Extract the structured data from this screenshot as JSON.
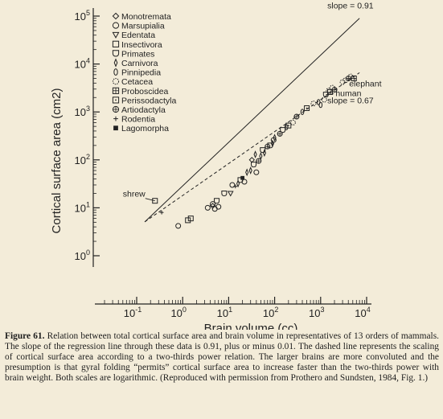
{
  "chart_data": {
    "type": "scatter",
    "xlabel": "Brain volume (cc)",
    "ylabel": "Cortical surface area (cm2)",
    "xscale": "log",
    "yscale": "log",
    "xlim": [
      0.1,
      10000
    ],
    "ylim": [
      1,
      100000
    ],
    "x_ticks": [
      "10-1",
      "100",
      "101",
      "102",
      "103",
      "104"
    ],
    "y_ticks": [
      "100",
      "101",
      "102",
      "103",
      "104",
      "105"
    ],
    "legend_position": "top-left",
    "legend": [
      {
        "label": "Monotremata",
        "symbol": "diamond"
      },
      {
        "label": "Marsupialia",
        "symbol": "circle"
      },
      {
        "label": "Edentata",
        "symbol": "triangle-down"
      },
      {
        "label": "Insectivora",
        "symbol": "square"
      },
      {
        "label": "Primates",
        "symbol": "shield"
      },
      {
        "label": "Carnivora",
        "symbol": "thin-diamond"
      },
      {
        "label": "Pinnipedia",
        "symbol": "ellipse"
      },
      {
        "label": "Cetacea",
        "symbol": "dotted-circle"
      },
      {
        "label": "Proboscidea",
        "symbol": "crossed-square"
      },
      {
        "label": "Perissodactyla",
        "symbol": "square-dot"
      },
      {
        "label": "Artiodactyla",
        "symbol": "circle-plus"
      },
      {
        "label": "Rodentia",
        "symbol": "plus"
      },
      {
        "label": "Lagomorpha",
        "symbol": "filled-square"
      }
    ],
    "lines": [
      {
        "label": "slope = 0.91",
        "style": "solid",
        "points": [
          [
            0.15,
            5.1
          ],
          [
            7000,
            90000
          ]
        ]
      },
      {
        "label": "slope = 0.67",
        "style": "dashed",
        "points": [
          [
            0.15,
            5.1
          ],
          [
            7000,
            6600
          ]
        ]
      }
    ],
    "annotations": [
      {
        "text": "shrew",
        "x": 0.25,
        "y": 14
      },
      {
        "text": "human",
        "x": 1300,
        "y": 2300
      },
      {
        "text": "elephant",
        "x": 5300,
        "y": 5000
      }
    ],
    "points": [
      {
        "x": 0.25,
        "y": 14,
        "group": "Insectivora"
      },
      {
        "x": 0.35,
        "y": 8,
        "group": "Rodentia"
      },
      {
        "x": 0.8,
        "y": 4.2,
        "group": "Marsupialia"
      },
      {
        "x": 1.3,
        "y": 5.5,
        "group": "Insectivora"
      },
      {
        "x": 1.5,
        "y": 6,
        "group": "Insectivora"
      },
      {
        "x": 3.5,
        "y": 10,
        "group": "Marsupialia"
      },
      {
        "x": 4.5,
        "y": 11,
        "group": "Monotremata"
      },
      {
        "x": 4.5,
        "y": 12,
        "group": "Marsupialia"
      },
      {
        "x": 5,
        "y": 9.5,
        "group": "Marsupialia"
      },
      {
        "x": 5.5,
        "y": 14,
        "group": "Primates"
      },
      {
        "x": 6,
        "y": 10.5,
        "group": "Marsupialia"
      },
      {
        "x": 8,
        "y": 20,
        "group": "Primates"
      },
      {
        "x": 11,
        "y": 20,
        "group": "Edentata"
      },
      {
        "x": 12,
        "y": 30,
        "group": "Marsupialia"
      },
      {
        "x": 14,
        "y": 28,
        "group": "Rodentia"
      },
      {
        "x": 16,
        "y": 32,
        "group": "Carnivora"
      },
      {
        "x": 18,
        "y": 38,
        "group": "Primates"
      },
      {
        "x": 20,
        "y": 42,
        "group": "Lagomorpha"
      },
      {
        "x": 22,
        "y": 35,
        "group": "Marsupialia"
      },
      {
        "x": 25,
        "y": 55,
        "group": "Carnivora"
      },
      {
        "x": 30,
        "y": 60,
        "group": "Carnivora"
      },
      {
        "x": 32,
        "y": 100,
        "group": "Monotremata"
      },
      {
        "x": 35,
        "y": 80,
        "group": "Primates"
      },
      {
        "x": 38,
        "y": 130,
        "group": "Carnivora"
      },
      {
        "x": 40,
        "y": 55,
        "group": "Marsupialia"
      },
      {
        "x": 45,
        "y": 95,
        "group": "Artiodactyla"
      },
      {
        "x": 50,
        "y": 120,
        "group": "Carnivora"
      },
      {
        "x": 55,
        "y": 160,
        "group": "Primates"
      },
      {
        "x": 60,
        "y": 140,
        "group": "Carnivora"
      },
      {
        "x": 70,
        "y": 190,
        "group": "Artiodactyla"
      },
      {
        "x": 80,
        "y": 200,
        "group": "Primates"
      },
      {
        "x": 90,
        "y": 220,
        "group": "Carnivora"
      },
      {
        "x": 95,
        "y": 260,
        "group": "Marsupialia"
      },
      {
        "x": 100,
        "y": 290,
        "group": "Carnivora"
      },
      {
        "x": 130,
        "y": 350,
        "group": "Artiodactyla"
      },
      {
        "x": 150,
        "y": 420,
        "group": "Primates"
      },
      {
        "x": 180,
        "y": 480,
        "group": "Pinnipedia"
      },
      {
        "x": 200,
        "y": 520,
        "group": "Perissodactyla"
      },
      {
        "x": 250,
        "y": 600,
        "group": "Cetacea"
      },
      {
        "x": 300,
        "y": 800,
        "group": "Artiodactyla"
      },
      {
        "x": 400,
        "y": 1000,
        "group": "Pinnipedia"
      },
      {
        "x": 500,
        "y": 1200,
        "group": "Perissodactyla"
      },
      {
        "x": 700,
        "y": 1500,
        "group": "Cetacea"
      },
      {
        "x": 900,
        "y": 1600,
        "group": "Pinnipedia"
      },
      {
        "x": 1000,
        "y": 1400,
        "group": "Pinnipedia"
      },
      {
        "x": 1200,
        "y": 1800,
        "group": "Cetacea"
      },
      {
        "x": 1300,
        "y": 2300,
        "group": "Primates"
      },
      {
        "x": 1500,
        "y": 2800,
        "group": "Cetacea"
      },
      {
        "x": 1600,
        "y": 2600,
        "group": "Perissodactyla"
      },
      {
        "x": 1800,
        "y": 3200,
        "group": "Cetacea"
      },
      {
        "x": 2000,
        "y": 2900,
        "group": "Artiodactyla"
      },
      {
        "x": 3000,
        "y": 4200,
        "group": "Cetacea"
      },
      {
        "x": 3500,
        "y": 4600,
        "group": "Cetacea"
      },
      {
        "x": 4000,
        "y": 5000,
        "group": "Artiodactyla"
      },
      {
        "x": 4500,
        "y": 5500,
        "group": "Cetacea"
      },
      {
        "x": 5300,
        "y": 5000,
        "group": "Proboscidea"
      }
    ]
  },
  "caption": {
    "label": "Figure 61.",
    "text": "Relation between total cortical surface area and brain volume in representatives of 13 orders of mammals. The slope of the regression line through these data is 0.91, plus or minus 0.01. The dashed line represents the scaling of cortical surface area according to a two-thirds power relation. The larger brains are more convoluted and the presumption is that gyral folding “permits” cortical surface area to increase faster than the two-thirds power with brain weight. Both scales are logarithmic. (Reproduced with permission from Prothero and Sundsten, 1984, Fig. 1.)"
  }
}
